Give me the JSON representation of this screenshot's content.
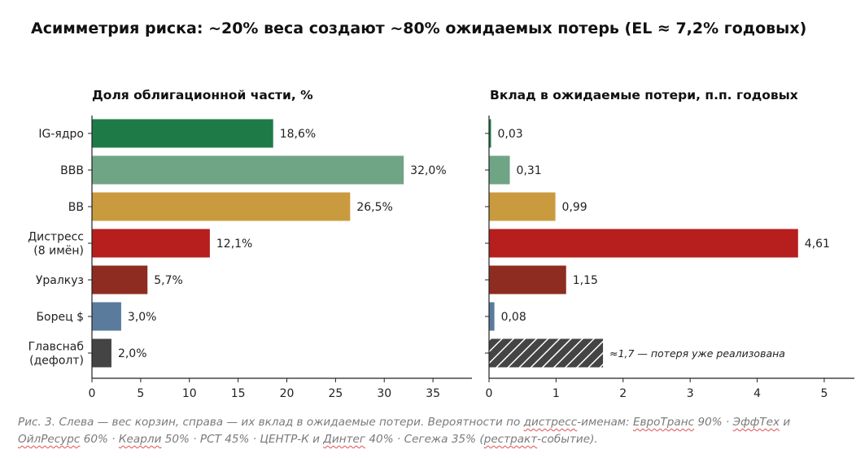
{
  "title": "Асимметрия риска: ~20% веса создают ~80% ожидаемых потерь (EL ≈ 7,2% годовых)",
  "chart_data": [
    {
      "type": "bar",
      "orientation": "horizontal",
      "title": "Доля облигационной части, %",
      "categories": [
        "IG-ядро",
        "BBB",
        "BB",
        "Дистресс\n(8 имён)",
        "Уралкуз",
        "Борец $",
        "Главснаб\n(дефолт)"
      ],
      "values": [
        18.6,
        32.0,
        26.5,
        12.1,
        5.7,
        3.0,
        2.0
      ],
      "value_labels": [
        "18,6%",
        "32,0%",
        "26,5%",
        "12,1%",
        "5,7%",
        "3,0%",
        "2,0%"
      ],
      "xlim": [
        0,
        39
      ],
      "xticks": [
        0,
        5,
        10,
        15,
        20,
        25,
        30,
        35
      ],
      "colors": [
        "#1e7b47",
        "#6fa585",
        "#c99b3e",
        "#b61f1d",
        "#8e2c22",
        "#5a7b9c",
        "#444444"
      ],
      "grid": false
    },
    {
      "type": "bar",
      "orientation": "horizontal",
      "title": "Вклад в ожидаемые потери, п.п. годовых",
      "categories": [
        "IG-ядро",
        "BBB",
        "BB",
        "Дистресс\n(8 имён)",
        "Уралкуз",
        "Борец $",
        "Главснаб\n(дефолт)"
      ],
      "values": [
        0.03,
        0.31,
        0.99,
        4.61,
        1.15,
        0.08,
        1.7
      ],
      "value_labels": [
        "0,03",
        "0,31",
        "0,99",
        "4,61",
        "1,15",
        "0,08",
        "≈1,7 — потеря уже реализована"
      ],
      "hatched": [
        false,
        false,
        false,
        false,
        false,
        false,
        true
      ],
      "xlim": [
        0,
        5.45
      ],
      "xticks": [
        0,
        1,
        2,
        3,
        4,
        5
      ],
      "colors": [
        "#1e7b47",
        "#6fa585",
        "#c99b3e",
        "#b61f1d",
        "#8e2c22",
        "#5a7b9c",
        "#444444"
      ],
      "grid": false
    }
  ],
  "caption": [
    {
      "t": "Рис. 3. Слева — вес корзин, справа — их вклад в ожидаемые потери. Вероятности по "
    },
    {
      "t": "дистресс",
      "u": true
    },
    {
      "t": "-именам: "
    },
    {
      "t": "ЕвроТранс",
      "u": true
    },
    {
      "t": " 90% · "
    },
    {
      "t": "ЭффТех",
      "u": true
    },
    {
      "t": " и "
    },
    {
      "t": "ОйлРесурс",
      "u": true
    },
    {
      "t": " 60% · "
    },
    {
      "t": "Кеарли",
      "u": true
    },
    {
      "t": " 50% · РСТ 45% · ЦЕНТР-К и "
    },
    {
      "t": "Динтег",
      "u": true
    },
    {
      "t": " 40% · Сегежа 35% ("
    },
    {
      "t": "рестракт",
      "u": true
    },
    {
      "t": "-событие)."
    }
  ]
}
